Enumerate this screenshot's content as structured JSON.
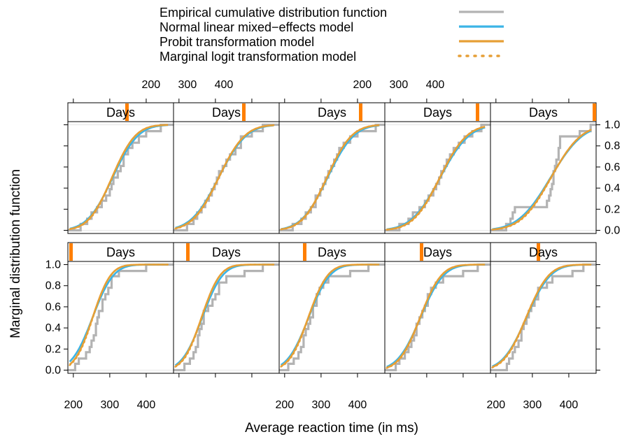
{
  "chart_data": {
    "type": "line",
    "xlabel": "Average reaction time (in ms)",
    "ylabel": "Marginal distribution function",
    "strip_label": "Days",
    "xlim": [
      185,
      475
    ],
    "ylim": [
      -0.03,
      1.03
    ],
    "x_ticks": [
      200,
      300,
      400
    ],
    "y_ticks": [
      0.0,
      0.2,
      0.4,
      0.6,
      0.8,
      1.0
    ],
    "x_tick_labels": [
      "200",
      "300",
      "400"
    ],
    "y_tick_labels": [
      "0.0",
      "0.2",
      "0.4",
      "0.6",
      "0.8",
      "1.0"
    ],
    "legend": [
      {
        "name": "Empirical cumulative distribution function",
        "color": "#b3b3b3",
        "style": "solid"
      },
      {
        "name": "Normal linear mixed−effects model",
        "color": "#3cb4e6",
        "style": "solid"
      },
      {
        "name": "Probit transformation model",
        "color": "#e69f36",
        "style": "solid"
      },
      {
        "name": "Marginal logit transformation model",
        "color": "#e69f36",
        "style": "dotted"
      }
    ],
    "panels": [
      {
        "day": 0,
        "normal": [
          253,
          45
        ],
        "probit": [
          253,
          39
        ],
        "ecdf": [
          [
            205,
            0.06
          ],
          [
            215,
            0.11
          ],
          [
            235,
            0.17
          ],
          [
            245,
            0.22
          ],
          [
            250,
            0.28
          ],
          [
            256,
            0.33
          ],
          [
            262,
            0.44
          ],
          [
            266,
            0.5
          ],
          [
            270,
            0.56
          ],
          [
            280,
            0.67
          ],
          [
            288,
            0.72
          ],
          [
            296,
            0.78
          ],
          [
            305,
            0.89
          ],
          [
            325,
            0.94
          ],
          [
            400,
            1.0
          ]
        ]
      },
      {
        "day": 1,
        "normal": [
          264,
          44
        ],
        "probit": [
          262,
          40
        ],
        "ecdf": [
          [
            215,
            0.06
          ],
          [
            230,
            0.11
          ],
          [
            240,
            0.17
          ],
          [
            246,
            0.22
          ],
          [
            252,
            0.33
          ],
          [
            256,
            0.39
          ],
          [
            262,
            0.44
          ],
          [
            268,
            0.56
          ],
          [
            280,
            0.61
          ],
          [
            292,
            0.67
          ],
          [
            300,
            0.72
          ],
          [
            310,
            0.83
          ],
          [
            330,
            0.89
          ],
          [
            380,
            0.94
          ],
          [
            430,
            1.0
          ]
        ]
      },
      {
        "day": 2,
        "normal": [
          266,
          46
        ],
        "probit": [
          265,
          42
        ],
        "ecdf": [
          [
            210,
            0.06
          ],
          [
            225,
            0.11
          ],
          [
            238,
            0.17
          ],
          [
            245,
            0.22
          ],
          [
            252,
            0.33
          ],
          [
            258,
            0.39
          ],
          [
            265,
            0.44
          ],
          [
            270,
            0.5
          ],
          [
            278,
            0.61
          ],
          [
            288,
            0.72
          ],
          [
            296,
            0.78
          ],
          [
            306,
            0.83
          ],
          [
            320,
            0.89
          ],
          [
            380,
            0.94
          ],
          [
            430,
            1.0
          ]
        ]
      },
      {
        "day": 3,
        "normal": [
          283,
          50
        ],
        "probit": [
          282,
          46
        ],
        "ecdf": [
          [
            215,
            0.06
          ],
          [
            225,
            0.11
          ],
          [
            240,
            0.17
          ],
          [
            250,
            0.22
          ],
          [
            258,
            0.28
          ],
          [
            265,
            0.33
          ],
          [
            272,
            0.44
          ],
          [
            280,
            0.5
          ],
          [
            288,
            0.56
          ],
          [
            295,
            0.61
          ],
          [
            303,
            0.72
          ],
          [
            312,
            0.78
          ],
          [
            325,
            0.83
          ],
          [
            345,
            0.89
          ],
          [
            400,
            0.94
          ],
          [
            440,
            1.0
          ]
        ]
      },
      {
        "day": 4,
        "normal": [
          284,
          52
        ],
        "probit": [
          283,
          49
        ],
        "ecdf": [
          [
            230,
            0.06
          ],
          [
            236,
            0.11
          ],
          [
            246,
            0.17
          ],
          [
            252,
            0.22
          ],
          [
            262,
            0.28
          ],
          [
            270,
            0.39
          ],
          [
            276,
            0.44
          ],
          [
            284,
            0.5
          ],
          [
            290,
            0.56
          ],
          [
            297,
            0.61
          ],
          [
            306,
            0.67
          ],
          [
            316,
            0.78
          ],
          [
            340,
            0.83
          ],
          [
            355,
            0.89
          ],
          [
            410,
            0.94
          ],
          [
            440,
            1.0
          ]
        ]
      },
      {
        "day": 5,
        "normal": [
          308,
          55
        ],
        "probit": [
          306,
          51
        ],
        "ecdf": [
          [
            220,
            0.06
          ],
          [
            238,
            0.11
          ],
          [
            250,
            0.17
          ],
          [
            265,
            0.22
          ],
          [
            278,
            0.28
          ],
          [
            290,
            0.33
          ],
          [
            300,
            0.39
          ],
          [
            305,
            0.44
          ],
          [
            310,
            0.5
          ],
          [
            322,
            0.56
          ],
          [
            330,
            0.61
          ],
          [
            338,
            0.72
          ],
          [
            350,
            0.78
          ],
          [
            362,
            0.83
          ],
          [
            380,
            0.89
          ],
          [
            400,
            0.94
          ],
          [
            440,
            1.0
          ]
        ]
      },
      {
        "day": 6,
        "normal": [
          309,
          60
        ],
        "probit": [
          309,
          57
        ],
        "ecdf": [
          [
            222,
            0.06
          ],
          [
            240,
            0.11
          ],
          [
            250,
            0.17
          ],
          [
            262,
            0.22
          ],
          [
            272,
            0.28
          ],
          [
            282,
            0.33
          ],
          [
            290,
            0.39
          ],
          [
            298,
            0.44
          ],
          [
            304,
            0.5
          ],
          [
            310,
            0.56
          ],
          [
            320,
            0.61
          ],
          [
            330,
            0.67
          ],
          [
            340,
            0.72
          ],
          [
            355,
            0.78
          ],
          [
            370,
            0.89
          ],
          [
            400,
            0.94
          ],
          [
            430,
            1.0
          ]
        ]
      },
      {
        "day": 7,
        "normal": [
          318,
          57
        ],
        "probit": [
          316,
          54
        ],
        "ecdf": [
          [
            222,
            0.06
          ],
          [
            246,
            0.11
          ],
          [
            258,
            0.17
          ],
          [
            272,
            0.22
          ],
          [
            285,
            0.33
          ],
          [
            298,
            0.39
          ],
          [
            305,
            0.44
          ],
          [
            312,
            0.5
          ],
          [
            320,
            0.56
          ],
          [
            328,
            0.61
          ],
          [
            336,
            0.67
          ],
          [
            344,
            0.72
          ],
          [
            350,
            0.78
          ],
          [
            362,
            0.83
          ],
          [
            380,
            0.89
          ],
          [
            400,
            0.94
          ],
          [
            450,
            1.0
          ]
        ]
      },
      {
        "day": 8,
        "normal": [
          337,
          63
        ],
        "probit": [
          336,
          59
        ],
        "ecdf": [
          [
            225,
            0.06
          ],
          [
            250,
            0.11
          ],
          [
            262,
            0.17
          ],
          [
            280,
            0.22
          ],
          [
            295,
            0.28
          ],
          [
            305,
            0.33
          ],
          [
            318,
            0.39
          ],
          [
            326,
            0.44
          ],
          [
            334,
            0.5
          ],
          [
            340,
            0.56
          ],
          [
            348,
            0.61
          ],
          [
            355,
            0.67
          ],
          [
            364,
            0.72
          ],
          [
            374,
            0.78
          ],
          [
            388,
            0.83
          ],
          [
            404,
            0.89
          ],
          [
            425,
            0.94
          ],
          [
            450,
            1.0
          ]
        ]
      },
      {
        "day": 9,
        "normal": [
          350,
          70
        ],
        "probit": [
          351,
          66
        ],
        "ecdf": [
          [
            228,
            0.06
          ],
          [
            240,
            0.11
          ],
          [
            246,
            0.17
          ],
          [
            252,
            0.22
          ],
          [
            340,
            0.28
          ],
          [
            346,
            0.33
          ],
          [
            350,
            0.39
          ],
          [
            354,
            0.44
          ],
          [
            358,
            0.56
          ],
          [
            362,
            0.61
          ],
          [
            366,
            0.67
          ],
          [
            372,
            0.78
          ],
          [
            376,
            0.89
          ],
          [
            430,
            0.94
          ],
          [
            460,
            1.0
          ]
        ]
      }
    ]
  }
}
